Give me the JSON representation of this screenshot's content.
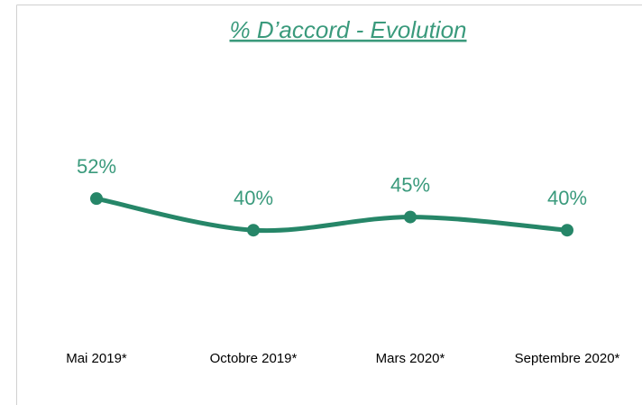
{
  "chart_data": {
    "type": "line",
    "title": "% D’accord - Evolution",
    "categories": [
      "Mai 2019*",
      "Octobre 2019*",
      "Mars 2020*",
      "Septembre 2020*"
    ],
    "series": [
      {
        "name": null,
        "color": "#268668",
        "values": [
          52,
          40,
          45,
          40
        ],
        "value_labels": [
          "52%",
          "40%",
          "45%",
          "40%"
        ]
      }
    ]
  }
}
